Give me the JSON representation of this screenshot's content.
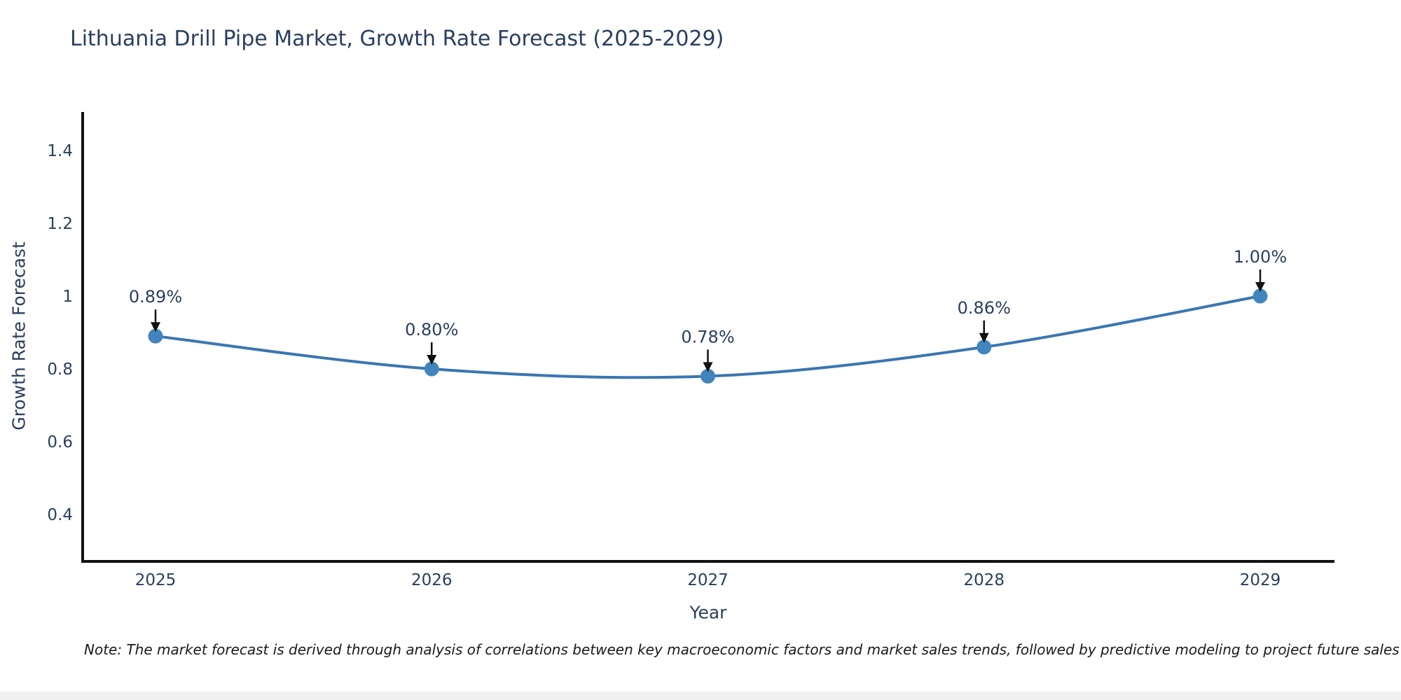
{
  "page": {
    "title": "Lithuania Drill Pipe Market, Growth Rate Forecast (2025-2029)",
    "note": "Note: The market forecast is derived through analysis of correlations between key macroeconomic factors and market sales trends, followed by predictive modeling to project future sales"
  },
  "chart_data": {
    "type": "line",
    "title": "Lithuania Drill Pipe Market, Growth Rate Forecast (2025-2029)",
    "xlabel": "Year",
    "ylabel": "Growth Rate Forecast",
    "categories": [
      "2025",
      "2026",
      "2027",
      "2028",
      "2029"
    ],
    "series": [
      {
        "name": "Growth Rate Forecast",
        "values": [
          0.89,
          0.8,
          0.78,
          0.86,
          1.0
        ]
      }
    ],
    "point_labels": [
      "0.89%",
      "0.80%",
      "0.78%",
      "0.86%",
      "1.00%"
    ],
    "y_ticks": [
      "0.4",
      "0.6",
      "0.8",
      "1",
      "1.2",
      "1.4"
    ],
    "ylim": [
      0.27,
      1.51
    ],
    "grid": false,
    "legend": "none",
    "line_shape": "spline",
    "annotation_style": "value-label-with-down-arrow",
    "colors": {
      "line": "#3a76b2",
      "marker": "#4285bd",
      "axis": "#111111",
      "tick_text": "#2a3f5f",
      "annotation_text": "#2a3f5f",
      "arrow": "#111111"
    }
  }
}
